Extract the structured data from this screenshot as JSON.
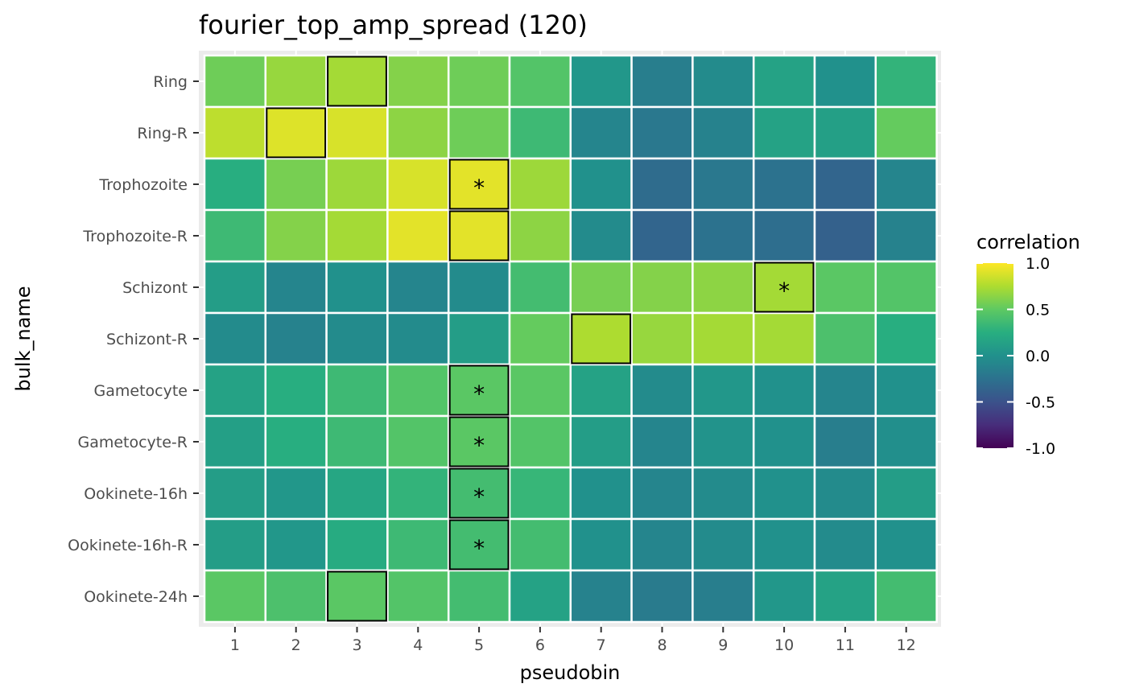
{
  "chart_data": {
    "type": "heatmap",
    "title": "fourier_top_amp_spread (120)",
    "xlabel": "pseudobin",
    "ylabel": "bulk_name",
    "x_categories": [
      "1",
      "2",
      "3",
      "4",
      "5",
      "6",
      "7",
      "8",
      "9",
      "10",
      "11",
      "12"
    ],
    "y_categories": [
      "Ring",
      "Ring-R",
      "Trophozoite",
      "Trophozoite-R",
      "Schizont",
      "Schizont-R",
      "Gametocyte",
      "Gametocyte-R",
      "Ookinete-16h",
      "Ookinete-16h-R",
      "Ookinete-24h"
    ],
    "values": [
      [
        0.55,
        0.68,
        0.72,
        0.62,
        0.55,
        0.45,
        0.05,
        -0.15,
        -0.05,
        0.15,
        0.0,
        0.3
      ],
      [
        0.8,
        0.9,
        0.88,
        0.65,
        0.55,
        0.35,
        -0.1,
        -0.2,
        -0.12,
        0.15,
        0.12,
        0.52
      ],
      [
        0.25,
        0.58,
        0.7,
        0.88,
        0.92,
        0.7,
        0.0,
        -0.3,
        -0.2,
        -0.25,
        -0.35,
        -0.1
      ],
      [
        0.35,
        0.62,
        0.72,
        0.92,
        0.92,
        0.65,
        -0.05,
        -0.35,
        -0.25,
        -0.28,
        -0.38,
        -0.12
      ],
      [
        0.1,
        -0.1,
        0.0,
        -0.1,
        -0.05,
        0.38,
        0.58,
        0.62,
        0.65,
        0.72,
        0.48,
        0.45
      ],
      [
        -0.05,
        -0.12,
        -0.05,
        -0.05,
        0.1,
        0.52,
        0.75,
        0.68,
        0.72,
        0.72,
        0.42,
        0.25
      ],
      [
        0.15,
        0.25,
        0.35,
        0.45,
        0.48,
        0.48,
        0.15,
        -0.05,
        0.05,
        0.0,
        -0.1,
        0.0
      ],
      [
        0.12,
        0.25,
        0.35,
        0.45,
        0.48,
        0.45,
        0.1,
        -0.1,
        0.02,
        0.0,
        -0.15,
        -0.02
      ],
      [
        0.1,
        0.05,
        0.18,
        0.3,
        0.38,
        0.32,
        0.0,
        -0.1,
        -0.05,
        0.0,
        -0.05,
        0.1
      ],
      [
        0.1,
        0.05,
        0.22,
        0.35,
        0.38,
        0.38,
        0.0,
        -0.1,
        -0.05,
        0.0,
        -0.05,
        0.0
      ],
      [
        0.48,
        0.42,
        0.48,
        0.45,
        0.38,
        0.15,
        -0.12,
        -0.18,
        -0.15,
        0.05,
        0.15,
        0.38
      ]
    ],
    "highlighted_cells": [
      {
        "row": "Ring",
        "col": "3"
      },
      {
        "row": "Ring-R",
        "col": "2"
      },
      {
        "row": "Trophozoite",
        "col": "5"
      },
      {
        "row": "Trophozoite-R",
        "col": "5"
      },
      {
        "row": "Schizont",
        "col": "10"
      },
      {
        "row": "Schizont-R",
        "col": "7"
      },
      {
        "row": "Gametocyte",
        "col": "5"
      },
      {
        "row": "Gametocyte-R",
        "col": "5"
      },
      {
        "row": "Ookinete-16h",
        "col": "5"
      },
      {
        "row": "Ookinete-16h-R",
        "col": "5"
      },
      {
        "row": "Ookinete-24h",
        "col": "3"
      }
    ],
    "starred_cells": [
      {
        "row": "Trophozoite",
        "col": "5"
      },
      {
        "row": "Schizont",
        "col": "10"
      },
      {
        "row": "Gametocyte",
        "col": "5"
      },
      {
        "row": "Gametocyte-R",
        "col": "5"
      },
      {
        "row": "Ookinete-16h",
        "col": "5"
      },
      {
        "row": "Ookinete-16h-R",
        "col": "5"
      }
    ],
    "star_symbol": "*",
    "legend": {
      "title": "correlation",
      "placement": "right",
      "range": [
        -1.0,
        1.0
      ],
      "tick_values": [
        1.0,
        0.5,
        0.0,
        -0.5,
        -1.0
      ],
      "tick_labels": [
        "1.0",
        "0.5",
        "0.0",
        "-0.5",
        "-1.0"
      ],
      "colormap": "viridis"
    },
    "grid": true,
    "colors": {
      "panel_background": "#ebebeb",
      "grid_line": "#ffffff",
      "tile_border": "#ffffff",
      "highlight_border": "#000000"
    }
  }
}
